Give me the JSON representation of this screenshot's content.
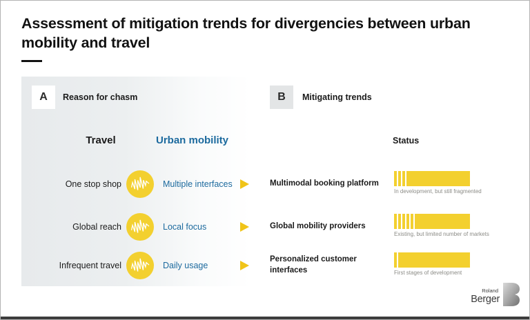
{
  "title": "Assessment of mitigation trends for divergencies between urban mobility and travel",
  "sections": {
    "a": {
      "letter": "A",
      "label": "Reason for chasm"
    },
    "b": {
      "letter": "B",
      "label": "Mitigating trends"
    }
  },
  "columns": {
    "travel": "Travel",
    "urban": "Urban mobility",
    "status": "Status"
  },
  "rows": [
    {
      "travel": "One stop shop",
      "urban": "Multiple interfaces",
      "trend": "Multimodal booking platform",
      "status": {
        "segments": 3,
        "caption": "In development, but still fragmented"
      }
    },
    {
      "travel": "Global reach",
      "urban": "Local focus",
      "trend": "Global mobility providers",
      "status": {
        "segments": 5,
        "caption": "Existing, but limited number of markets"
      }
    },
    {
      "travel": "Infrequent travel",
      "urban": "Daily usage",
      "trend": "Personalized customer interfaces",
      "status": {
        "segments": 1,
        "caption": "First stages of development"
      }
    }
  ],
  "logo": {
    "line1": "Roland",
    "line2": "Berger"
  },
  "colors": {
    "yellow": "#f3d02f",
    "arrow_yellow": "#f0c419",
    "brand_blue": "#1c6a9e",
    "panel_gray": "#e7eaec",
    "caption_gray": "#8b8b86",
    "text_black": "#1a1a1a"
  }
}
